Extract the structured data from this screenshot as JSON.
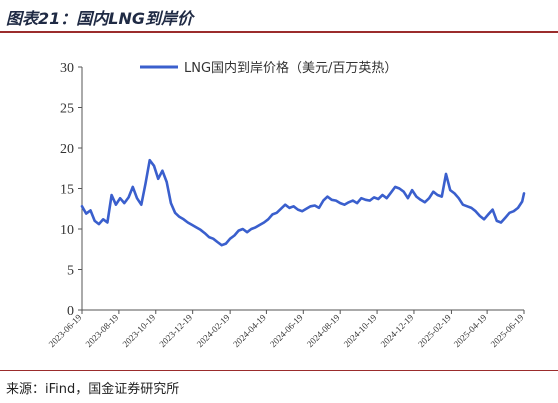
{
  "figure_title": "图表21：国内LNG到岸价",
  "source": "来源：iFind，国金证券研究所",
  "chart_data": {
    "type": "line",
    "title": "",
    "xlabel": "",
    "ylabel": "",
    "ylim": [
      0,
      30
    ],
    "yticks": [
      "0",
      "5",
      "10",
      "15",
      "20",
      "25",
      "30"
    ],
    "grid": false,
    "legend_position": "top-center",
    "x_tick_labels": [
      "2023-06-19",
      "2023-08-19",
      "2023-10-19",
      "2023-12-19",
      "2024-02-19",
      "2024-04-19",
      "2024-06-19",
      "2024-08-19",
      "2024-10-19",
      "2024-12-19",
      "2025-02-19",
      "2025-04-19",
      "2025-06-19"
    ],
    "series": [
      {
        "name": "LNG国内到岸价格（美元/百万英热）",
        "color": "#3a5fcd",
        "x": [
          "2023-06-19",
          "2023-06-26",
          "2023-07-03",
          "2023-07-10",
          "2023-07-17",
          "2023-07-24",
          "2023-07-31",
          "2023-08-07",
          "2023-08-14",
          "2023-08-21",
          "2023-08-28",
          "2023-09-04",
          "2023-09-11",
          "2023-09-18",
          "2023-09-25",
          "2023-10-02",
          "2023-10-09",
          "2023-10-16",
          "2023-10-23",
          "2023-10-30",
          "2023-11-06",
          "2023-11-13",
          "2023-11-20",
          "2023-11-27",
          "2023-12-04",
          "2023-12-11",
          "2023-12-18",
          "2023-12-25",
          "2024-01-01",
          "2024-01-08",
          "2024-01-15",
          "2024-01-22",
          "2024-01-29",
          "2024-02-05",
          "2024-02-12",
          "2024-02-19",
          "2024-02-26",
          "2024-03-04",
          "2024-03-11",
          "2024-03-18",
          "2024-03-25",
          "2024-04-01",
          "2024-04-08",
          "2024-04-15",
          "2024-04-22",
          "2024-04-29",
          "2024-05-06",
          "2024-05-13",
          "2024-05-20",
          "2024-05-27",
          "2024-06-03",
          "2024-06-10",
          "2024-06-17",
          "2024-06-24",
          "2024-07-01",
          "2024-07-08",
          "2024-07-15",
          "2024-07-22",
          "2024-07-29",
          "2024-08-05",
          "2024-08-12",
          "2024-08-19",
          "2024-08-26",
          "2024-09-02",
          "2024-09-09",
          "2024-09-16",
          "2024-09-23",
          "2024-09-30",
          "2024-10-07",
          "2024-10-14",
          "2024-10-21",
          "2024-10-28",
          "2024-11-04",
          "2024-11-11",
          "2024-11-18",
          "2024-11-25",
          "2024-12-02",
          "2024-12-09",
          "2024-12-16",
          "2024-12-23",
          "2024-12-30",
          "2025-01-06",
          "2025-01-13",
          "2025-01-20",
          "2025-01-27",
          "2025-02-03",
          "2025-02-10",
          "2025-02-17",
          "2025-02-24",
          "2025-03-03",
          "2025-03-10",
          "2025-03-17",
          "2025-03-24",
          "2025-03-31",
          "2025-04-07",
          "2025-04-14",
          "2025-04-21",
          "2025-04-28",
          "2025-05-05",
          "2025-05-12",
          "2025-05-19",
          "2025-05-26",
          "2025-06-02",
          "2025-06-09",
          "2025-06-16",
          "2025-06-19"
        ],
        "values": [
          12.8,
          11.9,
          12.3,
          11.0,
          10.6,
          11.2,
          10.8,
          14.2,
          13.0,
          13.8,
          13.2,
          13.9,
          15.2,
          13.8,
          13.0,
          15.6,
          18.5,
          17.8,
          16.2,
          17.2,
          15.8,
          13.2,
          12.0,
          11.5,
          11.2,
          10.8,
          10.5,
          10.2,
          9.9,
          9.5,
          9.0,
          8.8,
          8.4,
          8.0,
          8.2,
          8.8,
          9.2,
          9.8,
          10.0,
          9.6,
          10.0,
          10.2,
          10.5,
          10.8,
          11.2,
          11.8,
          12.0,
          12.5,
          13.0,
          12.6,
          12.8,
          12.4,
          12.2,
          12.5,
          12.8,
          12.9,
          12.6,
          13.5,
          14.0,
          13.6,
          13.5,
          13.2,
          13.0,
          13.3,
          13.5,
          13.2,
          13.8,
          13.6,
          13.5,
          13.9,
          13.7,
          14.2,
          13.8,
          14.5,
          15.2,
          15.0,
          14.6,
          13.8,
          14.8,
          14.0,
          13.6,
          13.3,
          13.8,
          14.6,
          14.2,
          14.0,
          16.8,
          14.8,
          14.4,
          13.8,
          13.0,
          12.8,
          12.6,
          12.2,
          11.6,
          11.2,
          11.8,
          12.4,
          11.0,
          10.8,
          11.4,
          12.0,
          12.2,
          12.6,
          13.4,
          14.4
        ]
      }
    ]
  }
}
